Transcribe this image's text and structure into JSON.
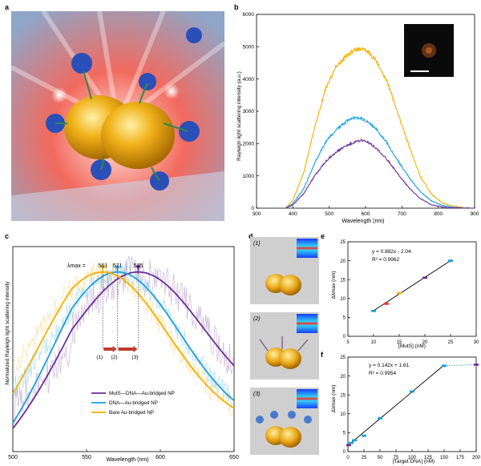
{
  "figure": {
    "labels": {
      "a": "a",
      "b": "b",
      "c": "c",
      "d": "d",
      "e": "e",
      "f": "f"
    },
    "panel_d_steps": [
      "(1)",
      "(2)",
      "(3)"
    ],
    "colors": {
      "yellow": "#f5b000",
      "blue": "#1aa0db",
      "purple": "#6a2d96",
      "red_marker": "#e33b2e",
      "green_marker": "#4caf50",
      "fit_line": "#000000"
    }
  },
  "chart_data": [
    {
      "id": "b",
      "type": "line",
      "xlabel": "Wavelength (nm)",
      "ylabel": "Rayleigh light scattering intensity (a.u.)",
      "xlim": [
        300,
        900
      ],
      "ylim": [
        0,
        6000
      ],
      "xticks": [
        300,
        400,
        500,
        600,
        700,
        800,
        900
      ],
      "yticks": [
        0,
        1000,
        2000,
        3000,
        4000,
        5000,
        6000
      ],
      "series": [
        {
          "color": "#f5b000",
          "x": [
            380,
            400,
            430,
            460,
            490,
            520,
            550,
            570,
            590,
            610,
            630,
            660,
            690,
            720,
            750,
            780,
            810,
            840,
            870,
            890
          ],
          "y": [
            0,
            250,
            1100,
            2500,
            3700,
            4400,
            4750,
            4900,
            4920,
            4800,
            4550,
            3900,
            2900,
            1900,
            1000,
            450,
            170,
            60,
            15,
            0
          ]
        },
        {
          "color": "#1aa0db",
          "x": [
            380,
            400,
            430,
            460,
            490,
            520,
            550,
            570,
            590,
            610,
            630,
            660,
            690,
            720,
            750,
            780,
            810,
            840,
            870,
            890
          ],
          "y": [
            0,
            150,
            600,
            1400,
            2050,
            2450,
            2700,
            2800,
            2780,
            2650,
            2450,
            2000,
            1450,
            950,
            520,
            230,
            90,
            30,
            8,
            0
          ]
        },
        {
          "color": "#6a2d96",
          "x": [
            380,
            400,
            430,
            460,
            490,
            520,
            550,
            570,
            590,
            610,
            630,
            660,
            690,
            720,
            750,
            780,
            810,
            840,
            870,
            890
          ],
          "y": [
            0,
            100,
            450,
            1000,
            1450,
            1750,
            1950,
            2050,
            2100,
            2020,
            1850,
            1500,
            1050,
            620,
            300,
            110,
            40,
            12,
            3,
            0
          ]
        }
      ]
    },
    {
      "id": "c",
      "type": "line",
      "xlabel": "Wavelength (nm)",
      "ylabel": "Normalized Rayleigh light scattering intensity",
      "xlim": [
        500,
        650
      ],
      "xticks": [
        500,
        550,
        600,
        650
      ],
      "annotation_prefix": "λmax =",
      "peak_labels": [
        "561",
        "571",
        "585"
      ],
      "peaks": [
        561,
        571,
        585
      ],
      "step_labels": [
        "(1)",
        "(2)",
        "(3)"
      ],
      "legend_position": "bottom-center",
      "series": [
        {
          "name": "MutS—DNA—Au-bridged NP",
          "color": "#6a2d96",
          "peak": 585,
          "width": 62,
          "base": 0.2,
          "ystart": 0.27
        },
        {
          "name": "DNA—Au-bridged NP",
          "color": "#1aa0db",
          "peak": 571,
          "width": 60,
          "base": 0.12,
          "ystart": 0.5
        },
        {
          "name": "Bare Au-bridged NP",
          "color": "#f5b000",
          "peak": 561,
          "width": 62,
          "base": 0.12,
          "ystart": 0.62
        }
      ]
    },
    {
      "id": "e",
      "type": "scatter",
      "xlabel": "[MutS] (nM)",
      "ylabel": "Δλmax (nm)",
      "xlim": [
        5,
        30
      ],
      "ylim": [
        0,
        25
      ],
      "xticks": [
        5,
        10,
        15,
        20,
        25,
        30
      ],
      "yticks": [
        0,
        5,
        10,
        15,
        20,
        25
      ],
      "fit_equation": "y = 0.882x - 2.04",
      "r_squared": "R² = 0.9962",
      "fit": {
        "slope": 0.882,
        "intercept": -2.04,
        "x_range": [
          10,
          25
        ]
      },
      "points": [
        {
          "x": 10,
          "y": 6.7,
          "err": 0.3,
          "color": "#1aa0db"
        },
        {
          "x": 12.5,
          "y": 8.6,
          "err": 0.3,
          "color": "#e33b2e"
        },
        {
          "x": 15,
          "y": 11.4,
          "err": 0.4,
          "color": "#f5b000"
        },
        {
          "x": 20,
          "y": 15.5,
          "err": 0.3,
          "color": "#6a2d96"
        },
        {
          "x": 25,
          "y": 20.0,
          "err": 0.5,
          "color": "#1aa0db"
        }
      ]
    },
    {
      "id": "f",
      "type": "scatter",
      "xlabel": "[Target DNA] (nM)",
      "ylabel": "Δλmax (nm)",
      "xlim": [
        0,
        200
      ],
      "ylim": [
        0,
        25
      ],
      "xticks": [
        0,
        25,
        50,
        75,
        100,
        125,
        150,
        175,
        200
      ],
      "yticks": [
        0,
        5,
        10,
        15,
        20,
        25
      ],
      "fit_equation": "y = 0.142x + 1.61",
      "r_squared": "R² = 0.9954",
      "fit": {
        "slope": 0.142,
        "intercept": 1.61,
        "x_range": [
          0,
          150
        ]
      },
      "points": [
        {
          "x": 1,
          "y": 1.7,
          "err": 0.3,
          "color": "#6a2d96"
        },
        {
          "x": 5,
          "y": 2.3,
          "err": 0.3,
          "color": "#1aa0db"
        },
        {
          "x": 10,
          "y": 3.0,
          "err": 0.3,
          "color": "#1aa0db"
        },
        {
          "x": 25,
          "y": 4.2,
          "err": 0.4,
          "color": "#1aa0db"
        },
        {
          "x": 50,
          "y": 8.8,
          "err": 0.4,
          "color": "#1aa0db"
        },
        {
          "x": 100,
          "y": 15.9,
          "err": 0.4,
          "color": "#1aa0db"
        },
        {
          "x": 150,
          "y": 22.7,
          "err": 0.5,
          "color": "#1aa0db"
        },
        {
          "x": 200,
          "y": 23.0,
          "err": 0.3,
          "color": "#6a2d96"
        }
      ]
    }
  ]
}
